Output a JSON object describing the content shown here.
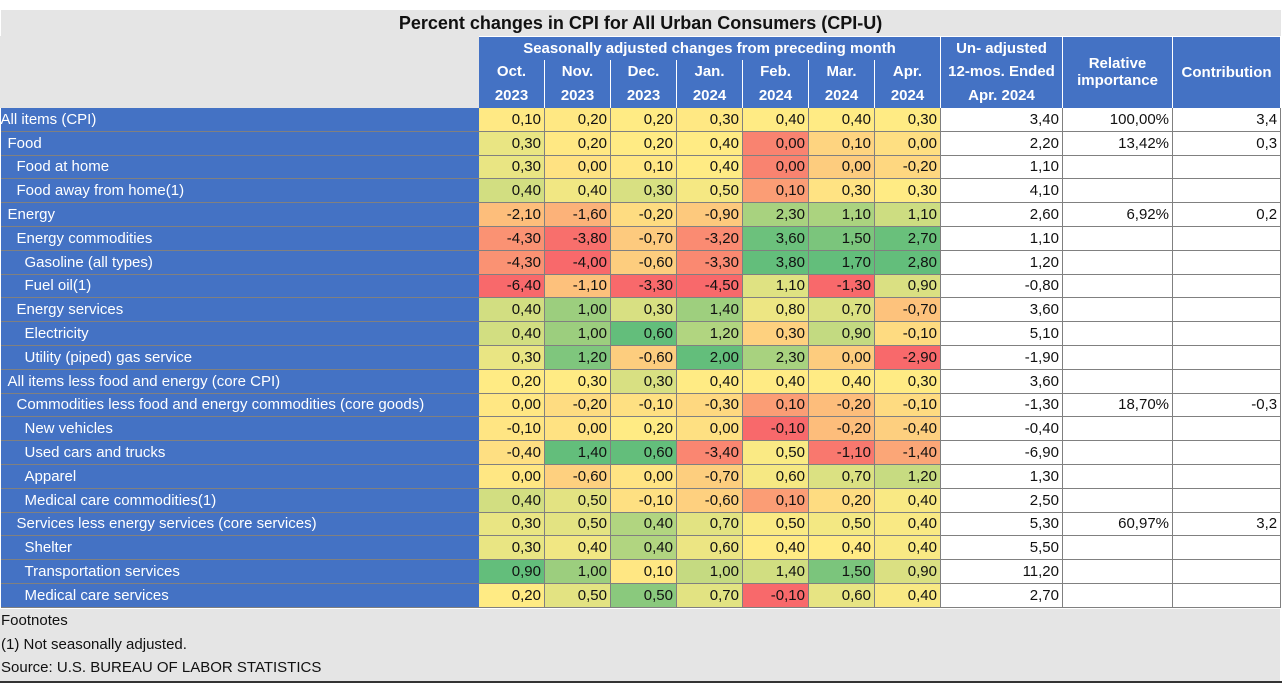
{
  "chart_data": {
    "type": "table",
    "title": "Percent changes in CPI for All Urban Consumers (CPI-U)",
    "group_header": "Seasonally adjusted changes from preceding month",
    "columns": [
      {
        "line1": "Oct.",
        "line2": "2023"
      },
      {
        "line1": "Nov.",
        "line2": "2023"
      },
      {
        "line1": "Dec.",
        "line2": "2023"
      },
      {
        "line1": "Jan.",
        "line2": "2024"
      },
      {
        "line1": "Feb.",
        "line2": "2024"
      },
      {
        "line1": "Mar.",
        "line2": "2024"
      },
      {
        "line1": "Apr.",
        "line2": "2024"
      }
    ],
    "unadjusted_header": [
      "Un- adjusted",
      "12-mos. Ended",
      "Apr. 2024"
    ],
    "relative_header": [
      "Relative",
      "importance"
    ],
    "contribution_header": "Contribution",
    "rows": [
      {
        "label": "All items (CPI)",
        "indent": 0,
        "values": [
          "0,10",
          "0,20",
          "0,20",
          "0,30",
          "0,40",
          "0,40",
          "0,30"
        ],
        "unadjusted": "3,40",
        "relative": "100,00%",
        "contribution": "3,4"
      },
      {
        "label": "Food",
        "indent": 1,
        "values": [
          "0,30",
          "0,20",
          "0,20",
          "0,40",
          "0,00",
          "0,10",
          "0,00"
        ],
        "unadjusted": "2,20",
        "relative": "13,42%",
        "contribution": "0,3"
      },
      {
        "label": "Food at home",
        "indent": 2,
        "values": [
          "0,30",
          "0,00",
          "0,10",
          "0,40",
          "0,00",
          "0,00",
          "-0,20"
        ],
        "unadjusted": "1,10",
        "relative": "",
        "contribution": ""
      },
      {
        "label": "Food away from home(1)",
        "indent": 2,
        "values": [
          "0,40",
          "0,40",
          "0,30",
          "0,50",
          "0,10",
          "0,30",
          "0,30"
        ],
        "unadjusted": "4,10",
        "relative": "",
        "contribution": ""
      },
      {
        "label": "Energy",
        "indent": 1,
        "values": [
          "-2,10",
          "-1,60",
          "-0,20",
          "-0,90",
          "2,30",
          "1,10",
          "1,10"
        ],
        "unadjusted": "2,60",
        "relative": "6,92%",
        "contribution": "0,2"
      },
      {
        "label": "Energy commodities",
        "indent": 2,
        "values": [
          "-4,30",
          "-3,80",
          "-0,70",
          "-3,20",
          "3,60",
          "1,50",
          "2,70"
        ],
        "unadjusted": "1,10",
        "relative": "",
        "contribution": ""
      },
      {
        "label": "Gasoline (all types)",
        "indent": 3,
        "values": [
          "-4,30",
          "-4,00",
          "-0,60",
          "-3,30",
          "3,80",
          "1,70",
          "2,80"
        ],
        "unadjusted": "1,20",
        "relative": "",
        "contribution": ""
      },
      {
        "label": "Fuel oil(1)",
        "indent": 3,
        "values": [
          "-6,40",
          "-1,10",
          "-3,30",
          "-4,50",
          "1,10",
          "-1,30",
          "0,90"
        ],
        "unadjusted": "-0,80",
        "relative": "",
        "contribution": ""
      },
      {
        "label": "Energy services",
        "indent": 2,
        "values": [
          "0,40",
          "1,00",
          "0,30",
          "1,40",
          "0,80",
          "0,70",
          "-0,70"
        ],
        "unadjusted": "3,60",
        "relative": "",
        "contribution": ""
      },
      {
        "label": "Electricity",
        "indent": 3,
        "values": [
          "0,40",
          "1,00",
          "0,60",
          "1,20",
          "0,30",
          "0,90",
          "-0,10"
        ],
        "unadjusted": "5,10",
        "relative": "",
        "contribution": ""
      },
      {
        "label": "Utility (piped) gas service",
        "indent": 3,
        "values": [
          "0,30",
          "1,20",
          "-0,60",
          "2,00",
          "2,30",
          "0,00",
          "-2,90"
        ],
        "unadjusted": "-1,90",
        "relative": "",
        "contribution": ""
      },
      {
        "label": "All items less food and energy (core CPI)",
        "indent": 1,
        "values": [
          "0,20",
          "0,30",
          "0,30",
          "0,40",
          "0,40",
          "0,40",
          "0,30"
        ],
        "unadjusted": "3,60",
        "relative": "",
        "contribution": ""
      },
      {
        "label": "Commodities less food and energy commodities (core goods)",
        "indent": 2,
        "values": [
          "0,00",
          "-0,20",
          "-0,10",
          "-0,30",
          "0,10",
          "-0,20",
          "-0,10"
        ],
        "unadjusted": "-1,30",
        "relative": "18,70%",
        "contribution": "-0,3"
      },
      {
        "label": "New vehicles",
        "indent": 3,
        "values": [
          "-0,10",
          "0,00",
          "0,20",
          "0,00",
          "-0,10",
          "-0,20",
          "-0,40"
        ],
        "unadjusted": "-0,40",
        "relative": "",
        "contribution": ""
      },
      {
        "label": "Used cars and trucks",
        "indent": 3,
        "values": [
          "-0,40",
          "1,40",
          "0,60",
          "-3,40",
          "0,50",
          "-1,10",
          "-1,40"
        ],
        "unadjusted": "-6,90",
        "relative": "",
        "contribution": ""
      },
      {
        "label": "Apparel",
        "indent": 3,
        "values": [
          "0,00",
          "-0,60",
          "0,00",
          "-0,70",
          "0,60",
          "0,70",
          "1,20"
        ],
        "unadjusted": "1,30",
        "relative": "",
        "contribution": ""
      },
      {
        "label": "Medical care commodities(1)",
        "indent": 3,
        "values": [
          "0,40",
          "0,50",
          "-0,10",
          "-0,60",
          "0,10",
          "0,20",
          "0,40"
        ],
        "unadjusted": "2,50",
        "relative": "",
        "contribution": ""
      },
      {
        "label": "Services less energy services (core services)",
        "indent": 2,
        "values": [
          "0,30",
          "0,50",
          "0,40",
          "0,70",
          "0,50",
          "0,50",
          "0,40"
        ],
        "unadjusted": "5,30",
        "relative": "60,97%",
        "contribution": "3,2"
      },
      {
        "label": "Shelter",
        "indent": 3,
        "values": [
          "0,30",
          "0,40",
          "0,40",
          "0,60",
          "0,40",
          "0,40",
          "0,40"
        ],
        "unadjusted": "5,50",
        "relative": "",
        "contribution": ""
      },
      {
        "label": "Transportation services",
        "indent": 3,
        "values": [
          "0,90",
          "1,00",
          "0,10",
          "1,00",
          "1,40",
          "1,50",
          "0,90"
        ],
        "unadjusted": "11,20",
        "relative": "",
        "contribution": ""
      },
      {
        "label": "Medical care services",
        "indent": 3,
        "values": [
          "0,20",
          "0,50",
          "0,50",
          "0,70",
          "-0,10",
          "0,60",
          "0,40"
        ],
        "unadjusted": "2,70",
        "relative": "",
        "contribution": ""
      }
    ],
    "footnotes": [
      "Footnotes",
      "(1) Not seasonally adjusted.",
      "Source: U.S. BUREAU OF LABOR STATISTICS"
    ],
    "colors": {
      "header_bg": "#4472c4",
      "neutral_bg": "#e5e5e5",
      "scale_low": "#f8696b",
      "scale_mid": "#ffeb84",
      "scale_high": "#63be7b"
    }
  }
}
